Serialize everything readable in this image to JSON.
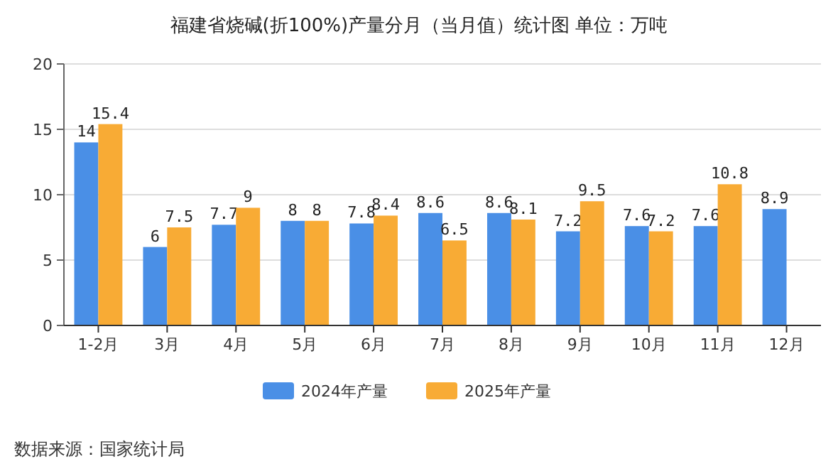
{
  "chart_data": {
    "type": "bar",
    "title": "福建省烧碱(折100%)产量分月（当月值）统计图 单位：万吨",
    "categories": [
      "1-2月",
      "3月",
      "4月",
      "5月",
      "6月",
      "7月",
      "8月",
      "9月",
      "10月",
      "11月",
      "12月"
    ],
    "series": [
      {
        "name": "2024年产量",
        "color": "#4a8fe6",
        "values": [
          14,
          6,
          7.7,
          8,
          7.8,
          8.6,
          8.6,
          7.2,
          7.6,
          7.6,
          8.9
        ]
      },
      {
        "name": "2025年产量",
        "color": "#f8ab35",
        "values": [
          15.4,
          7.5,
          9,
          8,
          8.4,
          6.5,
          8.1,
          9.5,
          7.2,
          10.8,
          null
        ]
      }
    ],
    "ylim": [
      0,
      20
    ],
    "yticks": [
      0,
      5,
      10,
      15,
      20
    ],
    "grid": "y",
    "legend": "bottom",
    "data_labels": true,
    "annotations": [
      "数据来源：国家统计局"
    ]
  }
}
